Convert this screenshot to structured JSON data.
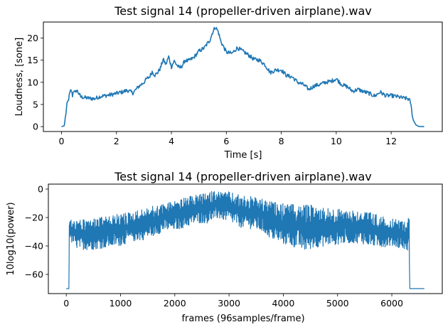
{
  "window": {
    "width": 623,
    "height": 460
  },
  "chart_data": [
    {
      "type": "line",
      "title": "Test signal 14 (propeller-driven airplane).wav",
      "xlabel": "Time [s]",
      "ylabel": "Loudness, [sone]",
      "xlim": [
        -0.66,
        13.86
      ],
      "ylim": [
        -1.1,
        23.6
      ],
      "xticks": [
        0,
        2,
        4,
        6,
        8,
        10,
        12
      ],
      "xtick_labels": [
        "0",
        "2",
        "4",
        "6",
        "8",
        "10",
        "12"
      ],
      "yticks": [
        0,
        5,
        10,
        15,
        20
      ],
      "ytick_labels": [
        "0",
        "5",
        "10",
        "15",
        "20"
      ],
      "grid": false,
      "series": [
        {
          "color": "#1f77b4",
          "x": [
            0,
            0.1,
            0.15,
            0.2,
            0.25,
            0.3,
            0.35,
            0.4,
            0.45,
            0.5,
            0.55,
            0.6,
            0.7,
            0.8,
            1.0,
            1.2,
            1.4,
            1.6,
            1.8,
            2.0,
            2.2,
            2.4,
            2.6,
            2.8,
            3.0,
            3.1,
            3.2,
            3.3,
            3.4,
            3.5,
            3.6,
            3.7,
            3.8,
            3.9,
            4.0,
            4.1,
            4.2,
            4.3,
            4.4,
            4.5,
            4.6,
            4.8,
            5.0,
            5.2,
            5.4,
            5.5,
            5.6,
            5.7,
            5.8,
            6.0,
            6.2,
            6.4,
            6.6,
            6.8,
            7.0,
            7.2,
            7.4,
            7.6,
            7.8,
            8.0,
            8.2,
            8.4,
            8.6,
            8.8,
            9.0,
            9.2,
            9.4,
            9.6,
            9.8,
            10.0,
            10.2,
            10.4,
            10.6,
            10.8,
            11.0,
            11.2,
            11.4,
            11.6,
            11.8,
            12.0,
            12.2,
            12.4,
            12.6,
            12.65,
            12.7,
            12.75,
            12.8,
            12.9,
            13.0,
            13.2
          ],
          "y": [
            0,
            0.2,
            2.5,
            5.0,
            6.0,
            7.5,
            8.3,
            7.0,
            8.4,
            7.5,
            8.3,
            7.8,
            6.7,
            6.6,
            6.4,
            6.3,
            6.8,
            7.0,
            7.2,
            7.5,
            7.8,
            8.2,
            7.6,
            9.0,
            10.0,
            10.8,
            11.2,
            12.4,
            11.6,
            12.2,
            13.2,
            15.2,
            14.0,
            15.8,
            13.5,
            14.8,
            13.9,
            13.2,
            13.8,
            15.0,
            14.8,
            15.5,
            17.0,
            17.8,
            19.5,
            21.3,
            22.5,
            21.5,
            19.2,
            16.8,
            16.5,
            17.8,
            17.0,
            16.2,
            15.2,
            15.0,
            14.0,
            12.2,
            12.8,
            12.8,
            11.5,
            11.2,
            10.0,
            9.5,
            8.4,
            9.2,
            9.5,
            10.0,
            10.2,
            10.8,
            9.5,
            9.0,
            8.0,
            8.4,
            7.9,
            7.5,
            6.9,
            7.8,
            7.0,
            7.0,
            6.8,
            6.5,
            6.3,
            6.1,
            5.5,
            3.5,
            1.5,
            0.4,
            0.05,
            0.0
          ]
        }
      ]
    },
    {
      "type": "line",
      "title": "Test signal 14 (propeller-driven airplane).wav",
      "xlabel": "frames (96samples/frame)",
      "ylabel": "10log10(power)",
      "xlim": [
        -330,
        6930
      ],
      "ylim": [
        -73.5,
        3.5
      ],
      "xticks": [
        0,
        1000,
        2000,
        3000,
        4000,
        5000,
        6000
      ],
      "xtick_labels": [
        "0",
        "1000",
        "2000",
        "3000",
        "4000",
        "5000",
        "6000"
      ],
      "yticks": [
        0,
        -20,
        -40,
        -60
      ],
      "ytick_labels": [
        "0",
        "−20",
        "−40",
        "−60"
      ],
      "grid": false,
      "series": [
        {
          "color": "#1f77b4",
          "x": [
            0,
            50,
            55,
            60,
            100,
            200,
            400,
            600,
            800,
            1000,
            1200,
            1400,
            1600,
            1800,
            2000,
            2200,
            2400,
            2600,
            2700,
            2800,
            2900,
            3000,
            3200,
            3400,
            3600,
            3800,
            4000,
            4200,
            4400,
            4600,
            4800,
            5000,
            5200,
            5400,
            5600,
            5800,
            6000,
            6200,
            6300,
            6320,
            6330,
            6400,
            6600
          ],
          "upper": [
            -70,
            -70,
            -25,
            -20,
            -22,
            -22,
            -21,
            -20,
            -19,
            -17,
            -16,
            -14,
            -12,
            -10,
            -8,
            -6,
            -4,
            -3,
            -1,
            -1,
            -2,
            -2,
            -4,
            -5,
            -7,
            -9,
            -10,
            -11,
            -11,
            -11,
            -13,
            -14,
            -14,
            -15,
            -16,
            -19,
            -21,
            -22,
            -20,
            -20,
            -70,
            -70,
            -70
          ],
          "lower": [
            -70,
            -70,
            -30,
            -33,
            -38,
            -42,
            -43,
            -42,
            -41,
            -40,
            -37,
            -36,
            -33,
            -30,
            -29,
            -27,
            -24,
            -24,
            -22,
            -21,
            -22,
            -23,
            -27,
            -28,
            -30,
            -36,
            -39,
            -41,
            -44,
            -41,
            -40,
            -39,
            -38,
            -38,
            -40,
            -41,
            -40,
            -42,
            -44,
            -41,
            -70,
            -70,
            -70
          ]
        }
      ]
    }
  ]
}
